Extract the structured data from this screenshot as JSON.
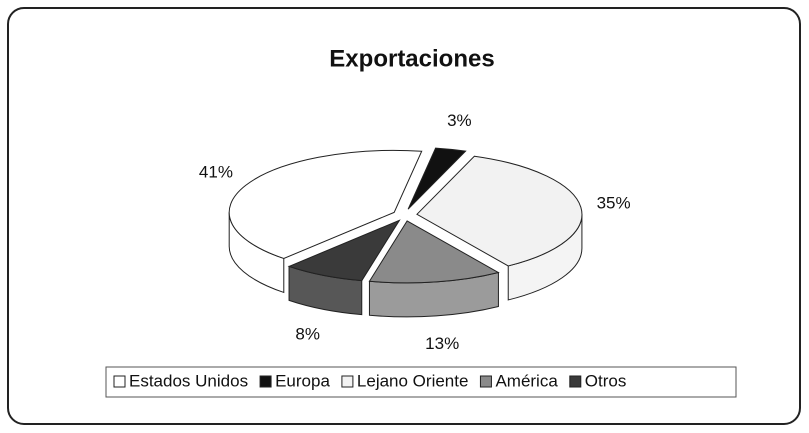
{
  "chart_data": {
    "type": "pie3d",
    "title": "Exportaciones",
    "categories": [
      "Estados Unidos",
      "Europa",
      "Lejano Oriente",
      "América",
      "Otros"
    ],
    "values": [
      41,
      3,
      35,
      13,
      8
    ],
    "value_labels": [
      "41%",
      "3%",
      "35%",
      "13%",
      "8%"
    ],
    "colors": [
      "#ffffff",
      "#111111",
      "#f2f2f2",
      "#8a8a8a",
      "#3a3a3a"
    ],
    "legend": "bottom"
  }
}
